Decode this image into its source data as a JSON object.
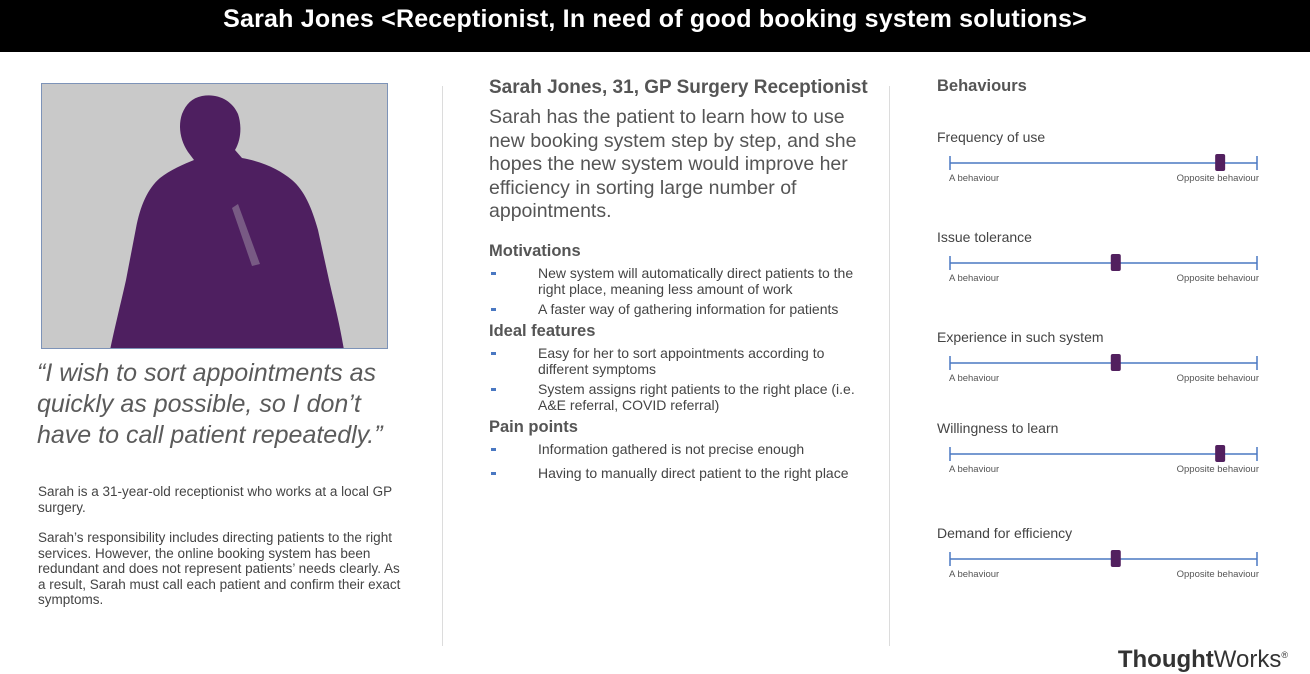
{
  "title": "Sarah Jones <Receptionist, In need of good booking system solutions>",
  "colors": {
    "silhouette": "#4e1f60",
    "photo_bg": "#c9c9c9",
    "accent": "#4a78c2",
    "marker": "#52205f"
  },
  "photo": {
    "icon": "person-silhouette-icon"
  },
  "quote": "“I wish to sort appointments as quickly as possible, so I don’t have to call patient repeatedly.”",
  "bio": [
    "Sarah is a 31-year-old receptionist who works at a local GP surgery.",
    "Sarah’s responsibility includes directing patients to the right services. However, the online booking system has been redundant and does not represent patients’ needs clearly. As a result, Sarah must call each patient and confirm their exact symptoms."
  ],
  "profile": {
    "name": "Sarah Jones, 31, GP Surgery Receptionist",
    "summary": "Sarah has the patient to learn how to use new booking system step by step, and she hopes the new system would improve her efficiency in sorting large number of appointments."
  },
  "motivations": {
    "heading": "Motivations",
    "items": [
      "New system will automatically direct patients to the right place, meaning less amount of work",
      "A faster way of gathering information for patients"
    ]
  },
  "ideal_features": {
    "heading": "Ideal features",
    "items": [
      "Easy for her to sort appointments according to different symptoms",
      "System assigns right patients to the right place (i.e. A&E referral, COVID referral)"
    ]
  },
  "pain_points": {
    "heading": "Pain points",
    "items": [
      "Information gathered is not precise enough",
      "Having to manually direct patient to the right place"
    ]
  },
  "behaviours": {
    "heading": "Behaviours",
    "scales": [
      {
        "label": "Frequency of use",
        "low": "A behaviour",
        "high": "Opposite behaviour",
        "value": 0.88
      },
      {
        "label": "Issue tolerance",
        "low": "A behaviour",
        "high": "Opposite behaviour",
        "value": 0.54
      },
      {
        "label": "Experience in such system",
        "low": "A behaviour",
        "high": "Opposite behaviour",
        "value": 0.54
      },
      {
        "label": "Willingness to learn",
        "low": "A behaviour",
        "high": "Opposite behaviour",
        "value": 0.88
      },
      {
        "label": "Demand for efficiency",
        "low": "A behaviour",
        "high": "Opposite behaviour",
        "value": 0.54
      }
    ]
  },
  "brand": {
    "bold": "Thought",
    "light": "Works",
    "mark": "®"
  }
}
